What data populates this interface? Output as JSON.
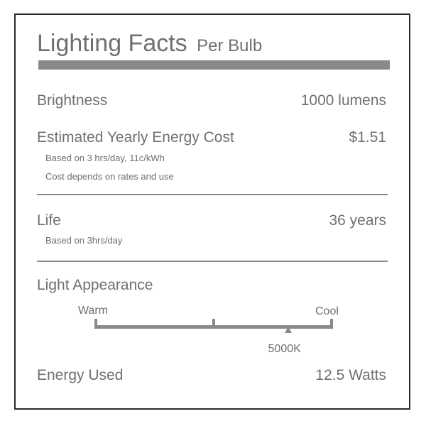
{
  "header": {
    "title": "Lighting Facts",
    "subtitle": "Per Bulb"
  },
  "brightness": {
    "label": "Brightness",
    "value": "1000 lumens"
  },
  "energy_cost": {
    "label": "Estimated Yearly Energy Cost",
    "value": "$1.51",
    "notes": [
      "Based on 3 hrs/day, 11c/kWh",
      "Cost depends on rates and use"
    ]
  },
  "life": {
    "label": "Life",
    "value": "36 years",
    "note": "Based on 3hrs/day"
  },
  "light_appearance": {
    "label": "Light Appearance",
    "scale_left": "Warm",
    "scale_right": "Cool",
    "marker_label": "5000K",
    "marker_fraction": 0.81
  },
  "energy_used": {
    "label": "Energy Used",
    "value": "12.5 Watts"
  },
  "colors": {
    "text": "#707070",
    "bar": "#8a8a8a",
    "border": "#2a2a2a"
  }
}
